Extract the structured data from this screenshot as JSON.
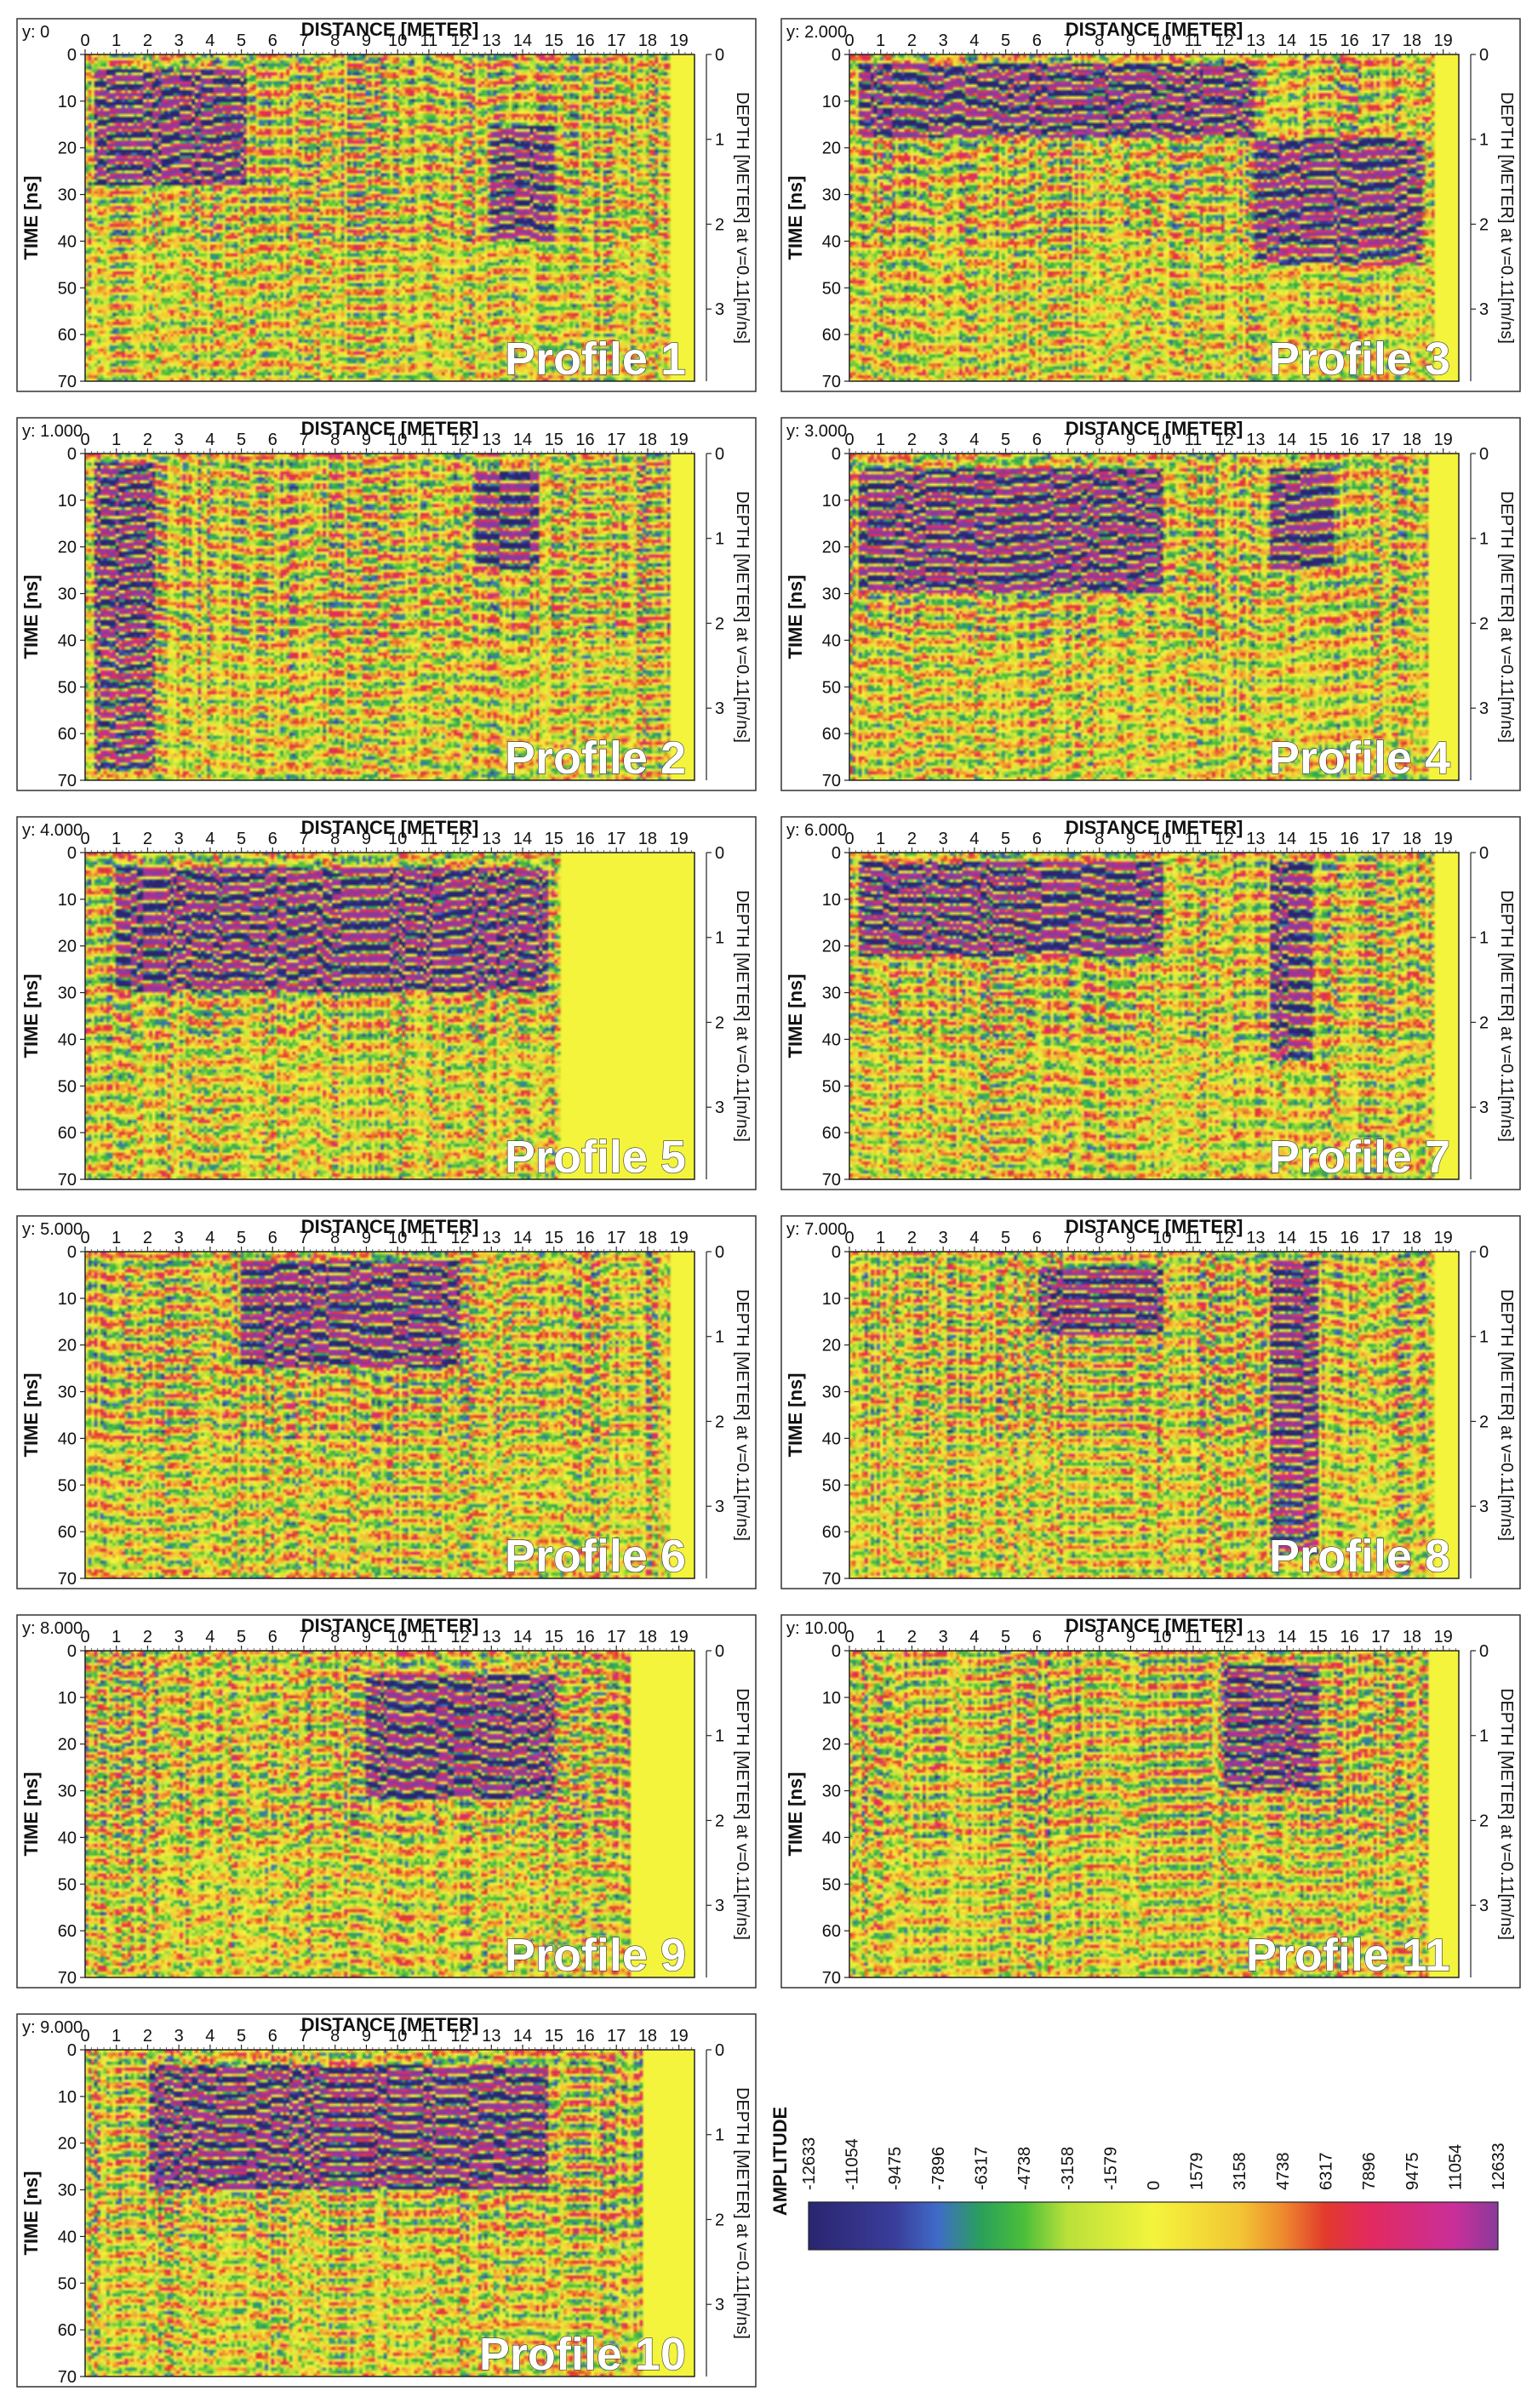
{
  "chart_data": [
    {
      "type": "heatmap",
      "profile_label": "Profile 1",
      "y_label": "y: 0",
      "xlabel": "DISTANCE [METER]",
      "ylabel": "TIME [ns]",
      "y2label": "DEPTH [METER] at v=0.11[m/ns]",
      "xlim": [
        0,
        19.5
      ],
      "ylim": [
        70,
        0
      ],
      "y2lim": [
        3.85,
        0
      ],
      "x_ticks": [
        "0",
        "1",
        "2",
        "3",
        "4",
        "5",
        "6",
        "7",
        "8",
        "9",
        "10",
        "11",
        "12",
        "13",
        "14",
        "15",
        "16",
        "17",
        "18",
        "19"
      ],
      "y_ticks": [
        "0",
        "10",
        "20",
        "30",
        "40",
        "50",
        "60",
        "70"
      ],
      "y2_ticks": [
        "0",
        "1",
        "2",
        "3"
      ],
      "data_end_x": 18.7,
      "strong_zones": [
        {
          "x": [
            0.3,
            5.2
          ],
          "t": [
            3,
            28
          ]
        },
        {
          "x": [
            13,
            15
          ],
          "t": [
            15,
            40
          ]
        }
      ],
      "seed": 11
    },
    {
      "type": "heatmap",
      "profile_label": "Profile 3",
      "y_label": "y: 2.000",
      "xlabel": "DISTANCE [METER]",
      "ylabel": "TIME [ns]",
      "y2label": "DEPTH [METER] at v=0.11[m/ns]",
      "xlim": [
        0,
        19.5
      ],
      "ylim": [
        70,
        0
      ],
      "y2lim": [
        3.85,
        0
      ],
      "x_ticks": [
        "0",
        "1",
        "2",
        "3",
        "4",
        "5",
        "6",
        "7",
        "8",
        "9",
        "10",
        "11",
        "12",
        "13",
        "14",
        "15",
        "16",
        "17",
        "18",
        "19"
      ],
      "y_ticks": [
        "0",
        "10",
        "20",
        "30",
        "40",
        "50",
        "60",
        "70"
      ],
      "y2_ticks": [
        "0",
        "1",
        "2",
        "3"
      ],
      "data_end_x": 18.7,
      "strong_zones": [
        {
          "x": [
            0.3,
            13
          ],
          "t": [
            2,
            18
          ]
        },
        {
          "x": [
            13,
            18.3
          ],
          "t": [
            18,
            45
          ]
        }
      ],
      "seed": 13
    },
    {
      "type": "heatmap",
      "profile_label": "Profile 2",
      "y_label": "y: 1.000",
      "xlabel": "DISTANCE [METER]",
      "ylabel": "TIME [ns]",
      "y2label": "DEPTH [METER] at v=0.11[m/ns]",
      "xlim": [
        0,
        19.5
      ],
      "ylim": [
        70,
        0
      ],
      "y2lim": [
        3.85,
        0
      ],
      "x_ticks": [
        "0",
        "1",
        "2",
        "3",
        "4",
        "5",
        "6",
        "7",
        "8",
        "9",
        "10",
        "11",
        "12",
        "13",
        "14",
        "15",
        "16",
        "17",
        "18",
        "19"
      ],
      "y_ticks": [
        "0",
        "10",
        "20",
        "30",
        "40",
        "50",
        "60",
        "70"
      ],
      "y2_ticks": [
        "0",
        "1",
        "2",
        "3"
      ],
      "data_end_x": 18.7,
      "strong_zones": [
        {
          "x": [
            0.3,
            2.2
          ],
          "t": [
            2,
            68
          ]
        },
        {
          "x": [
            12.5,
            14.5
          ],
          "t": [
            3,
            25
          ]
        }
      ],
      "seed": 17
    },
    {
      "type": "heatmap",
      "profile_label": "Profile 4",
      "y_label": "y: 3.000",
      "xlabel": "DISTANCE [METER]",
      "ylabel": "TIME [ns]",
      "y2label": "DEPTH [METER] at v=0.11[m/ns]",
      "xlim": [
        0,
        19.5
      ],
      "ylim": [
        70,
        0
      ],
      "y2lim": [
        3.85,
        0
      ],
      "x_ticks": [
        "0",
        "1",
        "2",
        "3",
        "4",
        "5",
        "6",
        "7",
        "8",
        "9",
        "10",
        "11",
        "12",
        "13",
        "14",
        "15",
        "16",
        "17",
        "18",
        "19"
      ],
      "y_ticks": [
        "0",
        "10",
        "20",
        "30",
        "40",
        "50",
        "60",
        "70"
      ],
      "y2_ticks": [
        "0",
        "1",
        "2",
        "3"
      ],
      "data_end_x": 18.5,
      "strong_zones": [
        {
          "x": [
            0.3,
            10
          ],
          "t": [
            3,
            30
          ]
        },
        {
          "x": [
            13.5,
            15.5
          ],
          "t": [
            3,
            25
          ]
        }
      ],
      "seed": 19
    },
    {
      "type": "heatmap",
      "profile_label": "Profile 5",
      "y_label": "y: 4.000",
      "xlabel": "DISTANCE [METER]",
      "ylabel": "TIME [ns]",
      "y2label": "DEPTH [METER] at v=0.11[m/ns]",
      "xlim": [
        0,
        19.5
      ],
      "ylim": [
        70,
        0
      ],
      "y2lim": [
        3.85,
        0
      ],
      "x_ticks": [
        "0",
        "1",
        "2",
        "3",
        "4",
        "5",
        "6",
        "7",
        "8",
        "9",
        "10",
        "11",
        "12",
        "13",
        "14",
        "15",
        "16",
        "17",
        "18",
        "19"
      ],
      "y_ticks": [
        "0",
        "10",
        "20",
        "30",
        "40",
        "50",
        "60",
        "70"
      ],
      "y2_ticks": [
        "0",
        "1",
        "2",
        "3"
      ],
      "data_end_x": 15.2,
      "strong_zones": [
        {
          "x": [
            1,
            14.8
          ],
          "t": [
            3,
            30
          ]
        }
      ],
      "seed": 23
    },
    {
      "type": "heatmap",
      "profile_label": "Profile 7",
      "y_label": "y: 6.000",
      "xlabel": "DISTANCE [METER]",
      "ylabel": "TIME [ns]",
      "y2label": "DEPTH [METER] at v=0.11[m/ns]",
      "xlim": [
        0,
        19.5
      ],
      "ylim": [
        70,
        0
      ],
      "y2lim": [
        3.85,
        0
      ],
      "x_ticks": [
        "0",
        "1",
        "2",
        "3",
        "4",
        "5",
        "6",
        "7",
        "8",
        "9",
        "10",
        "11",
        "12",
        "13",
        "14",
        "15",
        "16",
        "17",
        "18",
        "19"
      ],
      "y_ticks": [
        "0",
        "10",
        "20",
        "30",
        "40",
        "50",
        "60",
        "70"
      ],
      "y2_ticks": [
        "0",
        "1",
        "2",
        "3"
      ],
      "data_end_x": 18.7,
      "strong_zones": [
        {
          "x": [
            0.3,
            10
          ],
          "t": [
            2,
            22
          ]
        },
        {
          "x": [
            13.5,
            14.8
          ],
          "t": [
            2,
            45
          ]
        }
      ],
      "seed": 29
    },
    {
      "type": "heatmap",
      "profile_label": "Profile 6",
      "y_label": "y: 5.000",
      "xlabel": "DISTANCE [METER]",
      "ylabel": "TIME [ns]",
      "y2label": "DEPTH [METER] at v=0.11[m/ns]",
      "xlim": [
        0,
        19.5
      ],
      "ylim": [
        70,
        0
      ],
      "y2lim": [
        3.85,
        0
      ],
      "x_ticks": [
        "0",
        "1",
        "2",
        "3",
        "4",
        "5",
        "6",
        "7",
        "8",
        "9",
        "10",
        "11",
        "12",
        "13",
        "14",
        "15",
        "16",
        "17",
        "18",
        "19"
      ],
      "y_ticks": [
        "0",
        "10",
        "20",
        "30",
        "40",
        "50",
        "60",
        "70"
      ],
      "y2_ticks": [
        "0",
        "1",
        "2",
        "3"
      ],
      "data_end_x": 18.7,
      "strong_zones": [
        {
          "x": [
            5,
            12
          ],
          "t": [
            2,
            25
          ]
        }
      ],
      "seed": 31
    },
    {
      "type": "heatmap",
      "profile_label": "Profile 8",
      "y_label": "y: 7.000",
      "xlabel": "DISTANCE [METER]",
      "ylabel": "TIME [ns]",
      "y2label": "DEPTH [METER] at v=0.11[m/ns]",
      "xlim": [
        0,
        19.5
      ],
      "ylim": [
        70,
        0
      ],
      "y2lim": [
        3.85,
        0
      ],
      "x_ticks": [
        "0",
        "1",
        "2",
        "3",
        "4",
        "5",
        "6",
        "7",
        "8",
        "9",
        "10",
        "11",
        "12",
        "13",
        "14",
        "15",
        "16",
        "17",
        "18",
        "19"
      ],
      "y_ticks": [
        "0",
        "10",
        "20",
        "30",
        "40",
        "50",
        "60",
        "70"
      ],
      "y2_ticks": [
        "0",
        "1",
        "2",
        "3"
      ],
      "data_end_x": 18.7,
      "strong_zones": [
        {
          "x": [
            13.5,
            15
          ],
          "t": [
            2,
            65
          ]
        },
        {
          "x": [
            6,
            10
          ],
          "t": [
            3,
            18
          ]
        }
      ],
      "seed": 37
    },
    {
      "type": "heatmap",
      "profile_label": "Profile 9",
      "y_label": "y: 8.000",
      "xlabel": "DISTANCE [METER]",
      "ylabel": "TIME [ns]",
      "y2label": "DEPTH [METER] at v=0.11[m/ns]",
      "xlim": [
        0,
        19.5
      ],
      "ylim": [
        70,
        0
      ],
      "y2lim": [
        3.85,
        0
      ],
      "x_ticks": [
        "0",
        "1",
        "2",
        "3",
        "4",
        "5",
        "6",
        "7",
        "8",
        "9",
        "10",
        "11",
        "12",
        "13",
        "14",
        "15",
        "16",
        "17",
        "18",
        "19"
      ],
      "y_ticks": [
        "0",
        "10",
        "20",
        "30",
        "40",
        "50",
        "60",
        "70"
      ],
      "y2_ticks": [
        "0",
        "1",
        "2",
        "3"
      ],
      "data_end_x": 17.5,
      "strong_zones": [
        {
          "x": [
            9,
            15
          ],
          "t": [
            5,
            32
          ]
        }
      ],
      "seed": 41
    },
    {
      "type": "heatmap",
      "profile_label": "Profile 11",
      "y_label": "y: 10.00",
      "xlabel": "DISTANCE [METER]",
      "ylabel": "TIME [ns]",
      "y2label": "DEPTH [METER] at v=0.11[m/ns]",
      "xlim": [
        0,
        19.5
      ],
      "ylim": [
        70,
        0
      ],
      "y2lim": [
        3.85,
        0
      ],
      "x_ticks": [
        "0",
        "1",
        "2",
        "3",
        "4",
        "5",
        "6",
        "7",
        "8",
        "9",
        "10",
        "11",
        "12",
        "13",
        "14",
        "15",
        "16",
        "17",
        "18",
        "19"
      ],
      "y_ticks": [
        "0",
        "10",
        "20",
        "30",
        "40",
        "50",
        "60",
        "70"
      ],
      "y2_ticks": [
        "0",
        "1",
        "2",
        "3"
      ],
      "data_end_x": 18.5,
      "strong_zones": [
        {
          "x": [
            12,
            15
          ],
          "t": [
            3,
            30
          ]
        }
      ],
      "seed": 43
    },
    {
      "type": "heatmap",
      "profile_label": "Profile 10",
      "y_label": "y: 9.000",
      "xlabel": "DISTANCE [METER]",
      "ylabel": "TIME [ns]",
      "y2label": "DEPTH [METER] at v=0.11[m/ns]",
      "xlim": [
        0,
        19.5
      ],
      "ylim": [
        70,
        0
      ],
      "y2lim": [
        3.85,
        0
      ],
      "x_ticks": [
        "0",
        "1",
        "2",
        "3",
        "4",
        "5",
        "6",
        "7",
        "8",
        "9",
        "10",
        "11",
        "12",
        "13",
        "14",
        "15",
        "16",
        "17",
        "18",
        "19"
      ],
      "y_ticks": [
        "0",
        "10",
        "20",
        "30",
        "40",
        "50",
        "60",
        "70"
      ],
      "y2_ticks": [
        "0",
        "1",
        "2",
        "3"
      ],
      "data_end_x": 17.8,
      "strong_zones": [
        {
          "x": [
            2,
            14.8
          ],
          "t": [
            3,
            30
          ]
        }
      ],
      "seed": 47
    }
  ],
  "colorbar": {
    "label": "AMPLITUDE",
    "ticks": [
      "-12633",
      "-11054",
      "-9475",
      "-7896",
      "-6317",
      "-4738",
      "-3158",
      "-1579",
      "0",
      "1579",
      "3158",
      "4738",
      "6317",
      "7896",
      "9475",
      "11054",
      "12633"
    ],
    "stops": [
      {
        "value": -12633,
        "color": "#2a2570"
      },
      {
        "value": -9475,
        "color": "#3a3d9a"
      },
      {
        "value": -7896,
        "color": "#3f6cc8"
      },
      {
        "value": -6317,
        "color": "#2aa05a"
      },
      {
        "value": -4738,
        "color": "#4bbf3a"
      },
      {
        "value": -3158,
        "color": "#b9e03a"
      },
      {
        "value": 0,
        "color": "#f4f43c"
      },
      {
        "value": 3158,
        "color": "#f2c634"
      },
      {
        "value": 4738,
        "color": "#ee8a2e"
      },
      {
        "value": 6317,
        "color": "#e23a2c"
      },
      {
        "value": 7896,
        "color": "#e22a5e"
      },
      {
        "value": 11054,
        "color": "#c92f9a"
      },
      {
        "value": 12633,
        "color": "#8a3a9a"
      }
    ]
  }
}
